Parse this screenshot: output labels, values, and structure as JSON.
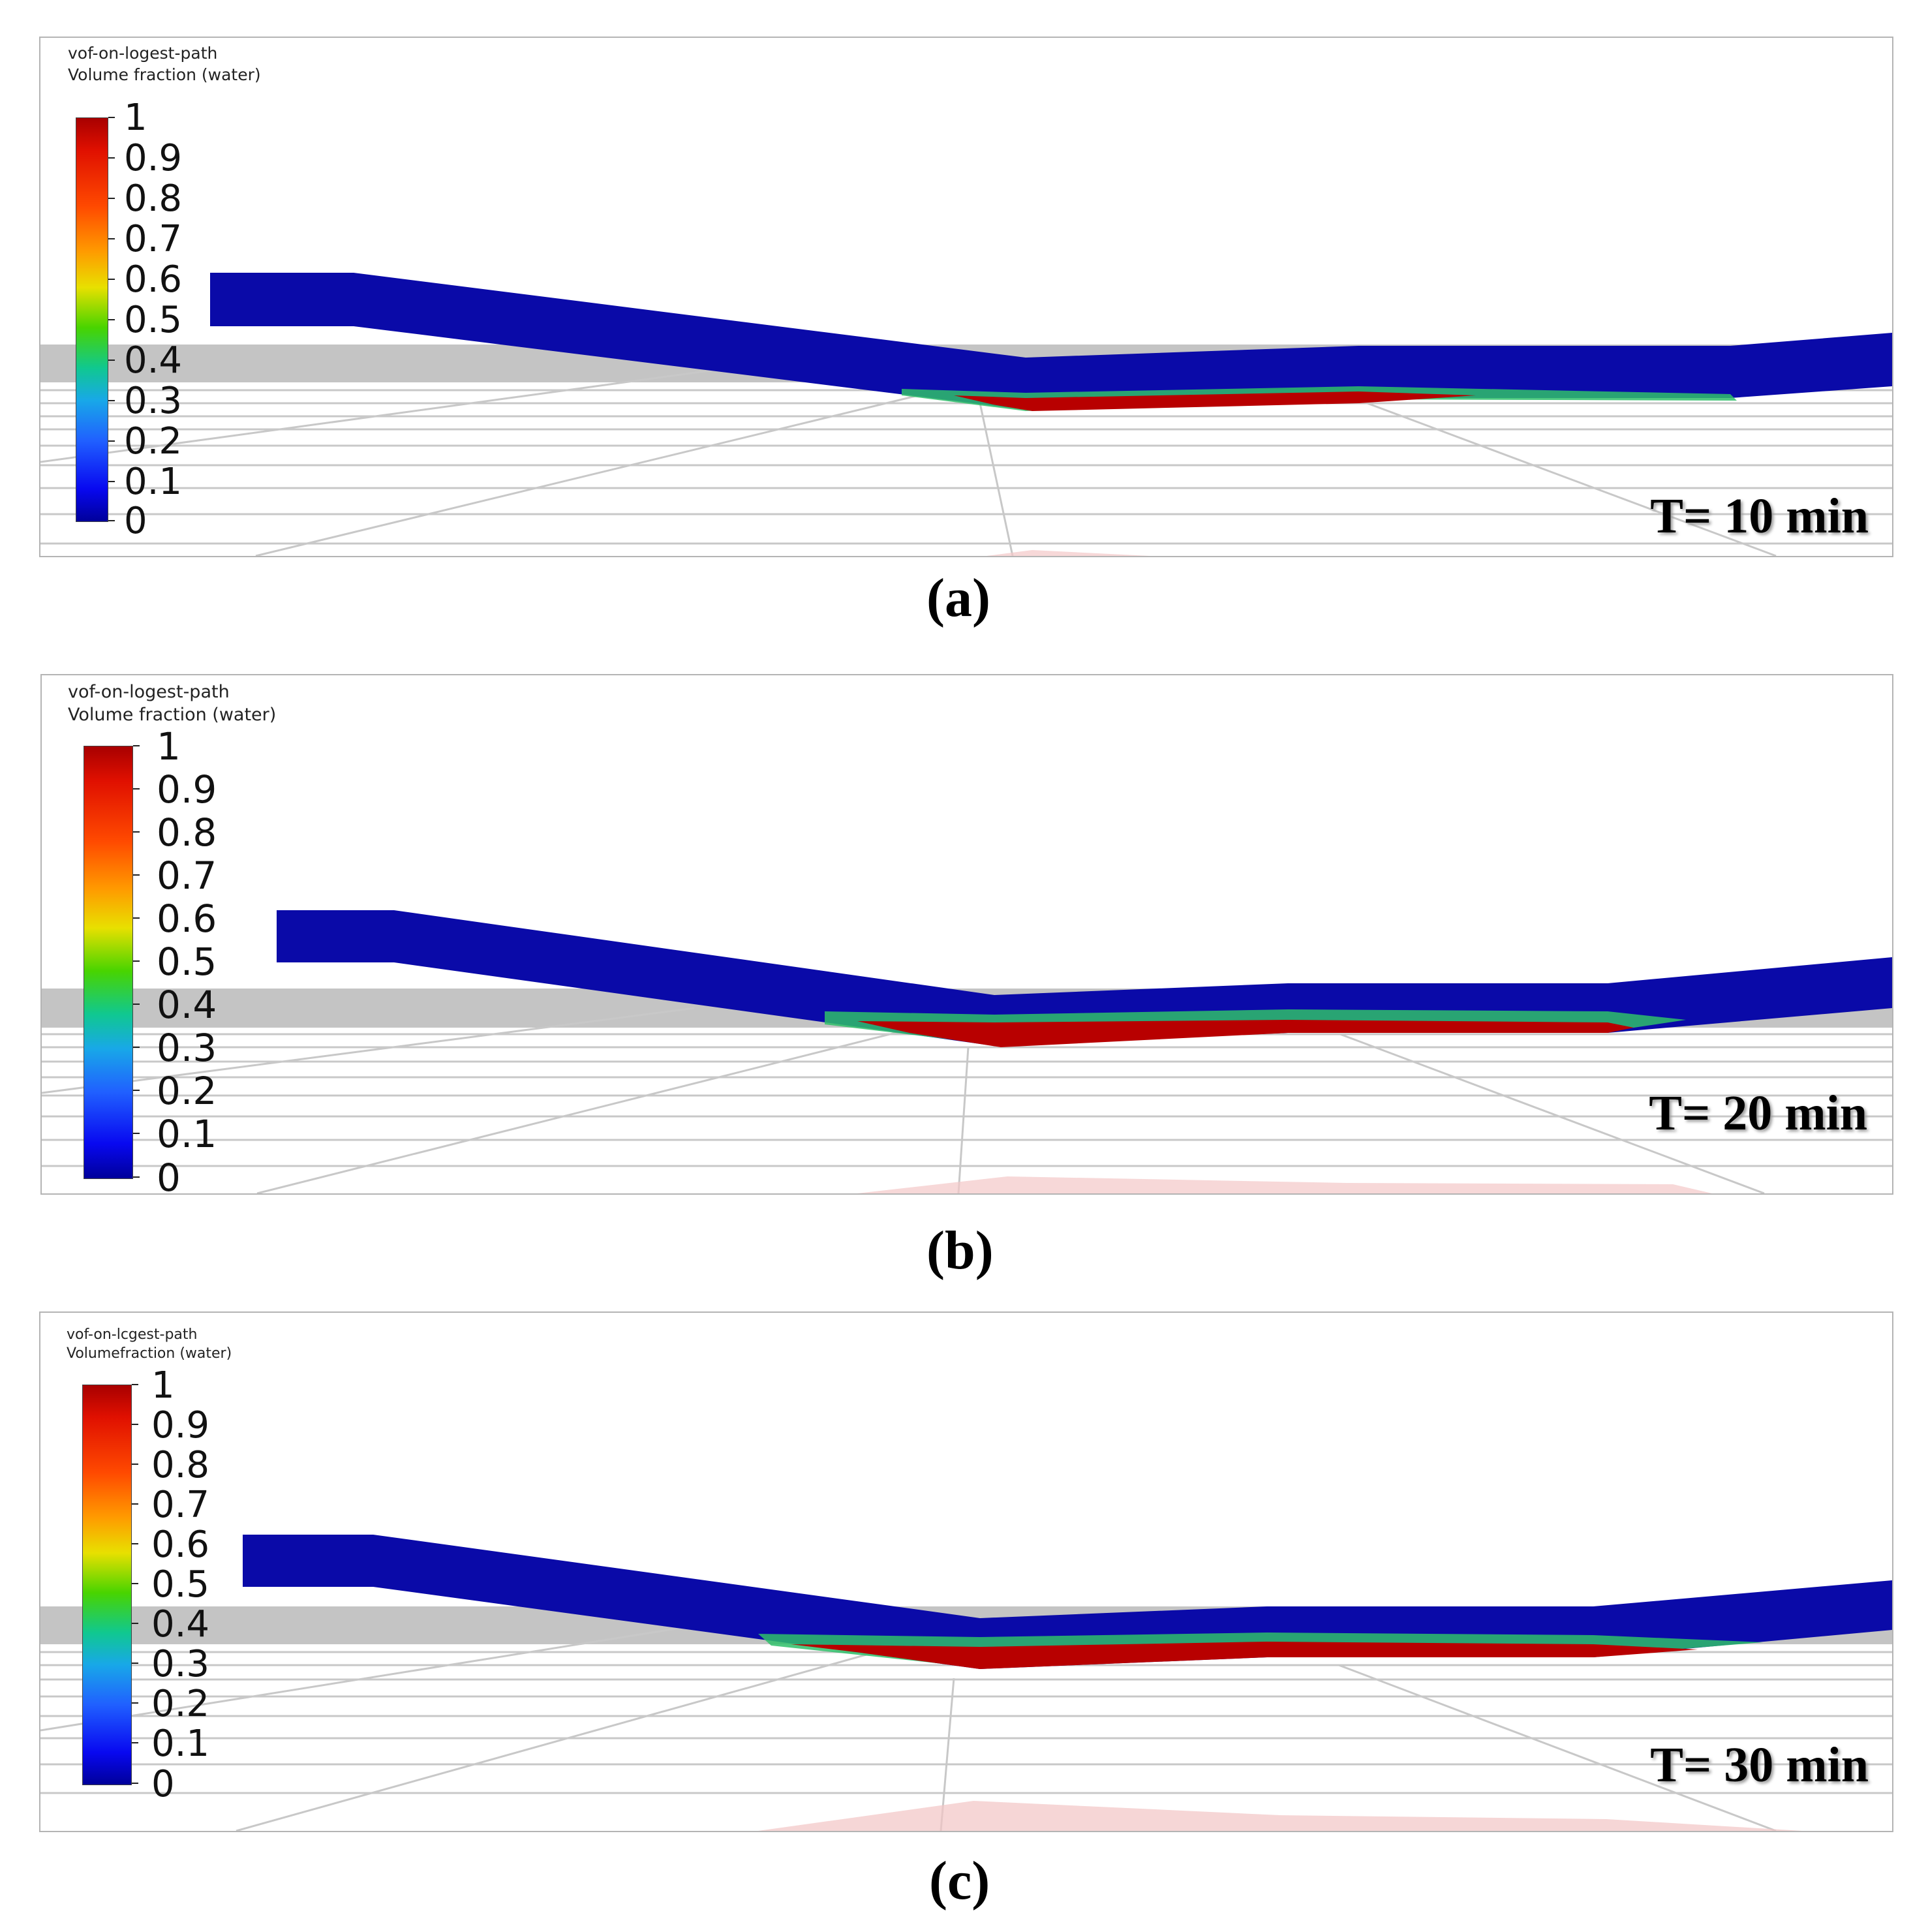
{
  "panels": [
    {
      "legend_title_line1": "vof-on-logest-path",
      "legend_title_line2": "Volume fraction (water)",
      "ticks": [
        "1",
        "0.9",
        "0.8",
        "0.7",
        "0.6",
        "0.5",
        "0.4",
        "0.3",
        "0.2",
        "0.1",
        "0"
      ],
      "time_label": "T= 10 min",
      "caption": "(a)",
      "elapsed_minutes": 10
    },
    {
      "legend_title_line1": "vof-on-logest-path",
      "legend_title_line2": "Volume fraction (water)",
      "ticks": [
        "1",
        "0.9",
        "0.8",
        "0.7",
        "0.6",
        "0.5",
        "0.4",
        "0.3",
        "0.2",
        "0.1",
        "0"
      ],
      "time_label": "T= 20 min",
      "caption": "(b)",
      "elapsed_minutes": 20
    },
    {
      "legend_title_line1": "vof-on-lcgest-path",
      "legend_title_line2": "Volumefraction (water)",
      "ticks": [
        "1",
        "0.9",
        "0.8",
        "0.7",
        "0.6",
        "0.5",
        "0.4",
        "0.3",
        "0.2",
        "0.1",
        "0"
      ],
      "time_label": "T= 30 min",
      "caption": "(c)",
      "elapsed_minutes": 30
    }
  ],
  "colors": {
    "pipe": "#0a0aa8",
    "water": "#b80000",
    "interface": "#2fbf6a",
    "grid": "#c8c8c8",
    "floor": "#c4c4c4"
  }
}
